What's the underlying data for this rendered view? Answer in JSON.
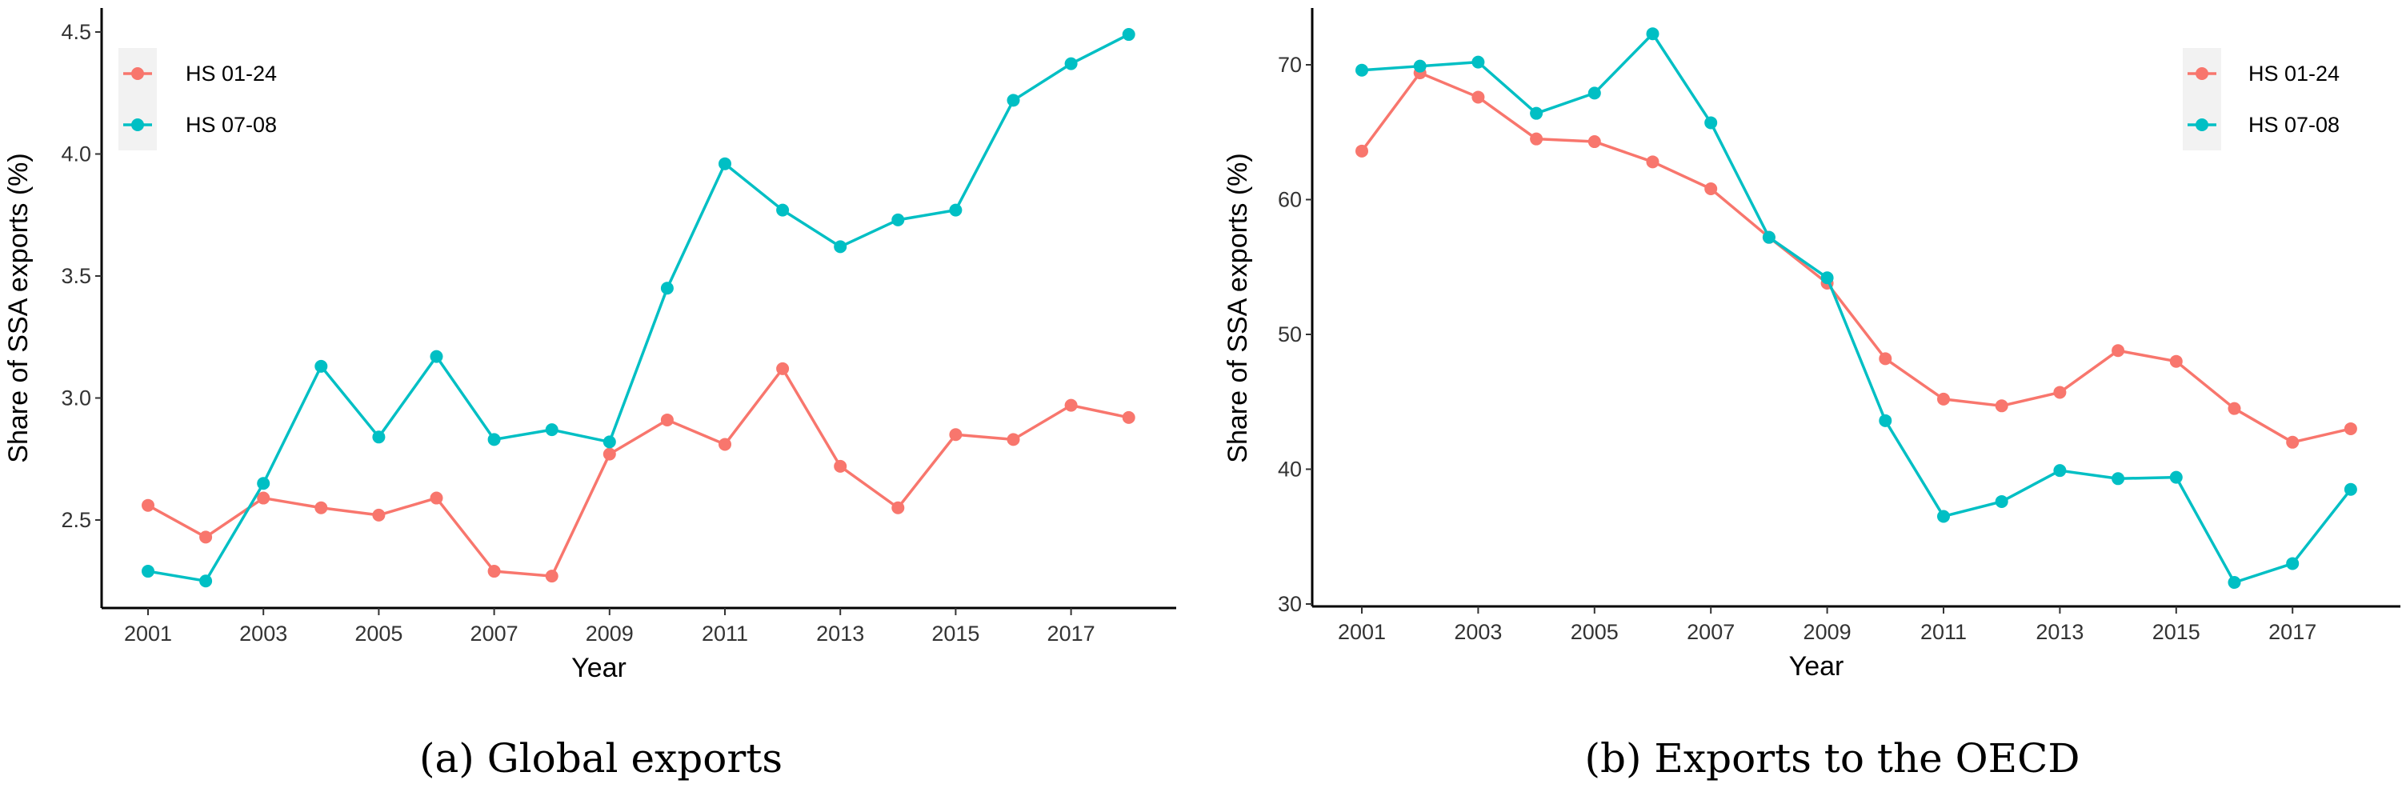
{
  "figure": {
    "captions": [
      "(a) Global exports",
      "(b) Exports to the OECD"
    ]
  },
  "chart_data": [
    {
      "type": "line",
      "id": "a",
      "title": "(a) Global exports",
      "xlabel": "Year",
      "ylabel": "Share of SSA exports (%)",
      "x": [
        2001,
        2002,
        2003,
        2004,
        2005,
        2006,
        2007,
        2008,
        2009,
        2010,
        2011,
        2012,
        2013,
        2014,
        2015,
        2016,
        2017,
        2018
      ],
      "x_ticks": [
        "2001",
        "2003",
        "2005",
        "2007",
        "2009",
        "2011",
        "2013",
        "2015",
        "2017"
      ],
      "y_ticks": [
        "2.5",
        "3.0",
        "3.5",
        "4.0",
        "4.5"
      ],
      "ylim": [
        2.18,
        4.6
      ],
      "grid": false,
      "legend_position": "top-left",
      "series": [
        {
          "name": "HS 01-24",
          "color": "#F8766D",
          "values": [
            2.56,
            2.43,
            2.59,
            2.55,
            2.52,
            2.59,
            2.29,
            2.27,
            2.77,
            2.91,
            2.81,
            3.12,
            2.72,
            2.55,
            2.85,
            2.83,
            2.97,
            2.92
          ]
        },
        {
          "name": "HS 07-08",
          "color": "#00BFC4",
          "values": [
            2.29,
            2.25,
            2.65,
            3.13,
            2.84,
            3.17,
            2.83,
            2.87,
            2.82,
            3.45,
            3.96,
            3.77,
            3.62,
            3.73,
            3.77,
            4.22,
            4.37,
            4.49
          ]
        }
      ]
    },
    {
      "type": "line",
      "id": "b",
      "title": "(b) Exports to the OECD",
      "xlabel": "Year",
      "ylabel": "Share of SSA exports (%)",
      "x": [
        2001,
        2002,
        2003,
        2004,
        2005,
        2006,
        2007,
        2008,
        2009,
        2010,
        2011,
        2012,
        2013,
        2014,
        2015,
        2016,
        2017,
        2018
      ],
      "x_ticks": [
        "2001",
        "2003",
        "2005",
        "2007",
        "2009",
        "2011",
        "2013",
        "2015",
        "2017"
      ],
      "y_ticks": [
        "30",
        "40",
        "50",
        "60",
        "70"
      ],
      "ylim": [
        30,
        74
      ],
      "grid": false,
      "legend_position": "top-right",
      "series": [
        {
          "name": "HS 01-24",
          "color": "#F8766D",
          "values": [
            63.6,
            69.4,
            67.6,
            64.5,
            64.3,
            62.8,
            60.8,
            57.2,
            53.8,
            48.2,
            45.2,
            44.7,
            45.7,
            48.8,
            48.0,
            44.5,
            42.0,
            43.0
          ]
        },
        {
          "name": "HS 07-08",
          "color": "#00BFC4",
          "values": [
            69.6,
            69.9,
            70.2,
            66.4,
            67.9,
            72.3,
            65.7,
            57.2,
            54.2,
            43.6,
            36.5,
            37.6,
            39.9,
            39.3,
            39.4,
            31.6,
            33.0,
            38.5
          ]
        }
      ]
    }
  ]
}
